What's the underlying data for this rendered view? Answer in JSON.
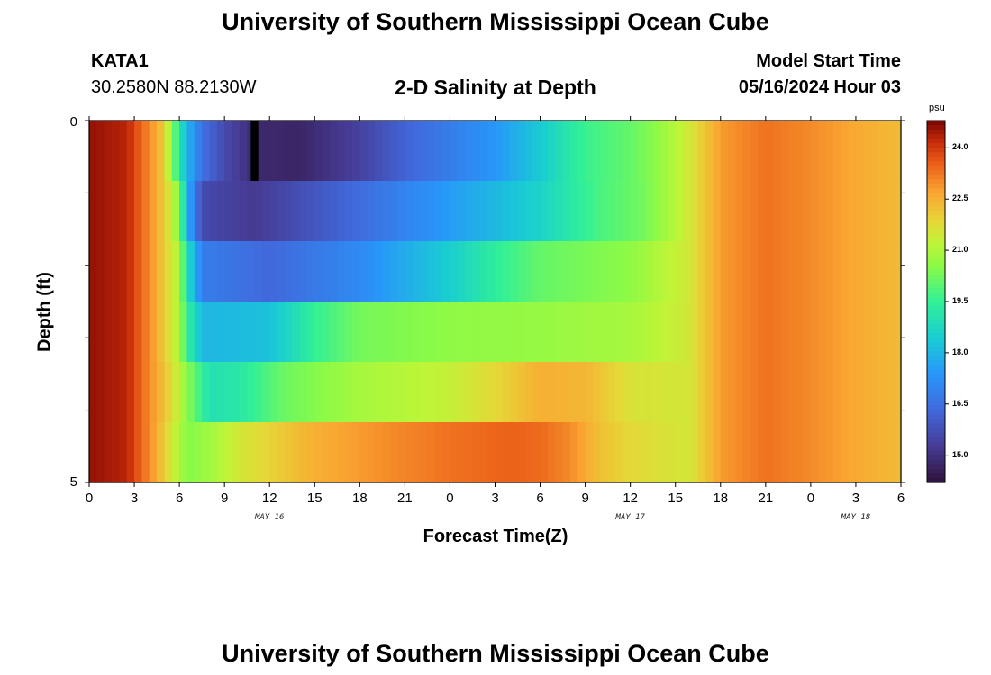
{
  "page": {
    "title_top": "University of Southern Mississippi Ocean Cube",
    "title_bottom": "University of Southern Mississippi Ocean Cube",
    "station_id": "KATA1",
    "station_coords": "30.2580N  88.2130W",
    "model_start_label": "Model Start Time",
    "model_start_value": "05/16/2024 Hour 03"
  },
  "colors": {
    "background": "#ffffff",
    "missing_marker": "#000000"
  },
  "chart_data": {
    "type": "heatmap",
    "title": "2-D Salinity at Depth",
    "xlabel": "Forecast Time(Z)",
    "ylabel": "Depth (ft)",
    "colorbar_unit": "psu",
    "x_range_hours": [
      0,
      54
    ],
    "x_step_hours": 0.5,
    "y_range": [
      0,
      5
    ],
    "y_tick_labels": [
      "0",
      "5"
    ],
    "x_tick_labels": [
      "0",
      "3",
      "6",
      "9",
      "12",
      "15",
      "18",
      "21",
      "0",
      "3",
      "6",
      "9",
      "12",
      "15",
      "18",
      "21",
      "0",
      "3",
      "6"
    ],
    "day_labels": [
      {
        "text": "MAY 16",
        "hour": 12
      },
      {
        "text": "MAY 17",
        "hour": 36
      },
      {
        "text": "MAY 18",
        "hour": 51
      }
    ],
    "colorbar": {
      "min": 14.2,
      "max": 24.8,
      "ticks": [
        "24.0",
        "22.5",
        "21.0",
        "19.5",
        "18.0",
        "16.5",
        "15.0"
      ],
      "tick_values": [
        24.0,
        22.5,
        21.0,
        19.5,
        18.0,
        16.5,
        15.0
      ],
      "colormap": "turbo"
    },
    "missing_cell": {
      "hour_start": 10.75,
      "hour_end": 11.25,
      "layer": 0
    },
    "depth_layers": [
      {
        "layer": 0,
        "anchors": [
          [
            0,
            24.6
          ],
          [
            2.5,
            24.3
          ],
          [
            4,
            23
          ],
          [
            5,
            22
          ],
          [
            5.5,
            20.5
          ],
          [
            6.5,
            18
          ],
          [
            7.5,
            16.5
          ],
          [
            9,
            15.6
          ],
          [
            11,
            14.8
          ],
          [
            14,
            14.7
          ],
          [
            18,
            15.4
          ],
          [
            21,
            16.2
          ],
          [
            24,
            16.8
          ],
          [
            27,
            17.4
          ],
          [
            30,
            18.4
          ],
          [
            33,
            19.6
          ],
          [
            36,
            20.1
          ],
          [
            37.5,
            20.5
          ],
          [
            40,
            21.5
          ],
          [
            42,
            22.8
          ],
          [
            45,
            23.3
          ],
          [
            48,
            23
          ],
          [
            51,
            22.6
          ],
          [
            54,
            22.3
          ]
        ]
      },
      {
        "layer": 1,
        "anchors": [
          [
            0,
            24.6
          ],
          [
            2.5,
            24.3
          ],
          [
            4,
            23
          ],
          [
            5,
            22
          ],
          [
            6,
            20.5
          ],
          [
            6.5,
            18
          ],
          [
            7.5,
            15.6
          ],
          [
            11,
            15.2
          ],
          [
            18,
            16.4
          ],
          [
            24,
            17.5
          ],
          [
            30,
            18.6
          ],
          [
            34,
            19.8
          ],
          [
            37,
            20.3
          ],
          [
            40,
            21.5
          ],
          [
            42,
            22.8
          ],
          [
            45,
            23.3
          ],
          [
            48,
            23
          ],
          [
            51,
            22.6
          ],
          [
            54,
            22.3
          ]
        ]
      },
      {
        "layer": 2,
        "anchors": [
          [
            0,
            24.6
          ],
          [
            2.5,
            24.3
          ],
          [
            4,
            23
          ],
          [
            5,
            22
          ],
          [
            6,
            21
          ],
          [
            6.5,
            19
          ],
          [
            7.5,
            16.8
          ],
          [
            12,
            16.3
          ],
          [
            18,
            17.1
          ],
          [
            24,
            18.5
          ],
          [
            27,
            19.4
          ],
          [
            30,
            20.1
          ],
          [
            36,
            20.6
          ],
          [
            40,
            21.5
          ],
          [
            42,
            22.8
          ],
          [
            45,
            23.3
          ],
          [
            48,
            23
          ],
          [
            51,
            22.6
          ],
          [
            54,
            22.3
          ]
        ]
      },
      {
        "layer": 3,
        "anchors": [
          [
            0,
            24.6
          ],
          [
            2.5,
            24.3
          ],
          [
            4,
            23
          ],
          [
            5,
            22
          ],
          [
            6,
            21
          ],
          [
            6.5,
            19.5
          ],
          [
            7.5,
            18
          ],
          [
            12,
            18.2
          ],
          [
            15,
            19.5
          ],
          [
            18,
            20.3
          ],
          [
            24,
            20.6
          ],
          [
            30,
            20.7
          ],
          [
            36,
            20.9
          ],
          [
            40,
            21.5
          ],
          [
            42,
            22.8
          ],
          [
            45,
            23.3
          ],
          [
            48,
            23
          ],
          [
            51,
            22.6
          ],
          [
            54,
            22.3
          ]
        ]
      },
      {
        "layer": 4,
        "anchors": [
          [
            0,
            24.6
          ],
          [
            2.5,
            24.3
          ],
          [
            4,
            23
          ],
          [
            5,
            22.2
          ],
          [
            6,
            21.2
          ],
          [
            7,
            20
          ],
          [
            8,
            19
          ],
          [
            10,
            19.2
          ],
          [
            13,
            20.2
          ],
          [
            18,
            20.9
          ],
          [
            24,
            21.3
          ],
          [
            27,
            21.8
          ],
          [
            30,
            22.5
          ],
          [
            33,
            22.4
          ],
          [
            36,
            21.6
          ],
          [
            40,
            21.5
          ],
          [
            42,
            22.8
          ],
          [
            45,
            23.3
          ],
          [
            48,
            23
          ],
          [
            51,
            22.6
          ],
          [
            54,
            22.3
          ]
        ]
      },
      {
        "layer": 5,
        "anchors": [
          [
            0,
            24.6
          ],
          [
            2.5,
            24.3
          ],
          [
            4,
            23
          ],
          [
            5.5,
            21.5
          ],
          [
            6.5,
            20.5
          ],
          [
            8,
            20.8
          ],
          [
            10,
            21.5
          ],
          [
            15,
            22.5
          ],
          [
            20,
            23
          ],
          [
            24,
            23.3
          ],
          [
            28,
            23.5
          ],
          [
            30,
            23.4
          ],
          [
            32,
            23
          ],
          [
            34,
            22.2
          ],
          [
            36,
            21.8
          ],
          [
            40,
            21.5
          ],
          [
            42,
            22.8
          ],
          [
            45,
            23.3
          ],
          [
            48,
            23
          ],
          [
            51,
            22.6
          ],
          [
            54,
            22.3
          ]
        ]
      }
    ]
  }
}
